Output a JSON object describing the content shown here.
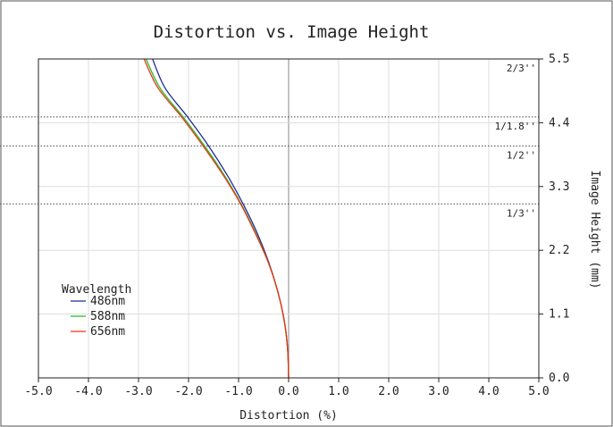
{
  "chart_data": {
    "type": "line",
    "title": "Distortion vs. Image Height",
    "xlabel": "Distortion (%)",
    "ylabel": "Image Height (mm)",
    "xlim": [
      -5.0,
      5.0
    ],
    "ylim": [
      0.0,
      5.5
    ],
    "x_ticks": [
      "-5.0",
      "-4.0",
      "-3.0",
      "-2.0",
      "-1.0",
      "0.0",
      "1.0",
      "2.0",
      "3.0",
      "4.0",
      "5.0"
    ],
    "y_ticks": [
      "0.0",
      "1.1",
      "2.2",
      "3.3",
      "4.4",
      "5.5"
    ],
    "x_tick_values": [
      -5,
      -4,
      -3,
      -2,
      -1,
      0,
      1,
      2,
      3,
      4,
      5
    ],
    "y_tick_values": [
      0,
      1.1,
      2.2,
      3.3,
      4.4,
      5.5
    ],
    "grid": true,
    "legend": {
      "title": "Wavelength",
      "placement": "lower-left"
    },
    "sensor_lines": [
      {
        "label": "2/3''",
        "height": 5.5
      },
      {
        "label": "1/1.8''",
        "height": 4.5
      },
      {
        "label": "1/2''",
        "height": 4.0
      },
      {
        "label": "1/3''",
        "height": 3.0
      }
    ],
    "series": [
      {
        "name": "486nm",
        "color": "#1f2a99",
        "points": [
          [
            0.0,
            0.0
          ],
          [
            -0.02,
            0.5
          ],
          [
            -0.09,
            1.0
          ],
          [
            -0.22,
            1.5
          ],
          [
            -0.4,
            2.0
          ],
          [
            -0.63,
            2.5
          ],
          [
            -0.91,
            3.0
          ],
          [
            -1.23,
            3.5
          ],
          [
            -1.6,
            4.0
          ],
          [
            -2.02,
            4.5
          ],
          [
            -2.47,
            5.0
          ],
          [
            -2.72,
            5.5
          ]
        ]
      },
      {
        "name": "588nm",
        "color": "#22bb22",
        "points": [
          [
            0.0,
            0.0
          ],
          [
            -0.02,
            0.5
          ],
          [
            -0.09,
            1.0
          ],
          [
            -0.22,
            1.5
          ],
          [
            -0.41,
            2.0
          ],
          [
            -0.66,
            2.5
          ],
          [
            -0.95,
            3.0
          ],
          [
            -1.29,
            3.5
          ],
          [
            -1.68,
            4.0
          ],
          [
            -2.11,
            4.5
          ],
          [
            -2.57,
            5.0
          ],
          [
            -2.85,
            5.5
          ]
        ]
      },
      {
        "name": "656nm",
        "color": "#ee3311",
        "points": [
          [
            0.0,
            0.0
          ],
          [
            -0.02,
            0.5
          ],
          [
            -0.09,
            1.0
          ],
          [
            -0.22,
            1.5
          ],
          [
            -0.41,
            2.0
          ],
          [
            -0.67,
            2.5
          ],
          [
            -0.96,
            3.0
          ],
          [
            -1.31,
            3.5
          ],
          [
            -1.71,
            4.0
          ],
          [
            -2.14,
            4.5
          ],
          [
            -2.61,
            5.0
          ],
          [
            -2.89,
            5.5
          ]
        ]
      }
    ]
  }
}
